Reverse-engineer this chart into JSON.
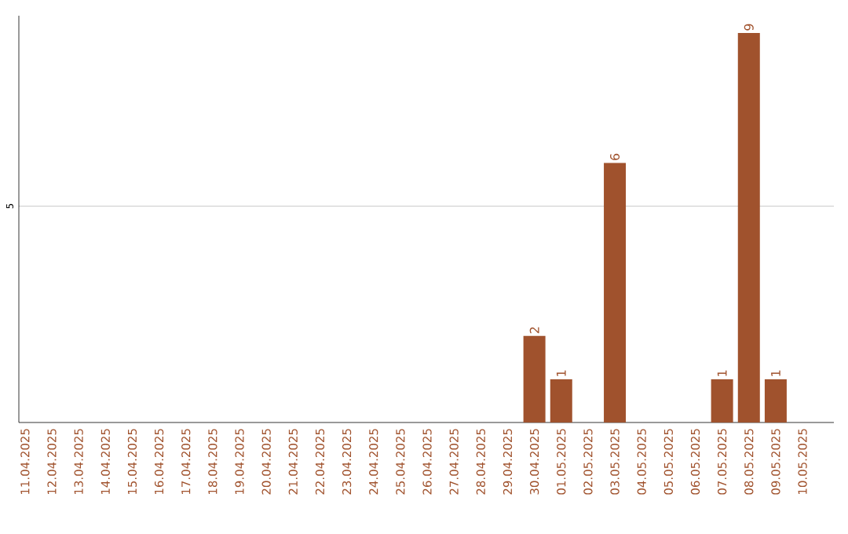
{
  "chart_data": {
    "type": "bar",
    "categories": [
      "11.04.2025",
      "12.04.2025",
      "13.04.2025",
      "14.04.2025",
      "15.04.2025",
      "16.04.2025",
      "17.04.2025",
      "18.04.2025",
      "19.04.2025",
      "20.04.2025",
      "21.04.2025",
      "22.04.2025",
      "23.04.2025",
      "24.04.2025",
      "25.04.2025",
      "26.04.2025",
      "27.04.2025",
      "28.04.2025",
      "29.04.2025",
      "30.04.2025",
      "01.05.2025",
      "02.05.2025",
      "03.05.2025",
      "04.05.2025",
      "05.05.2025",
      "06.05.2025",
      "07.05.2025",
      "08.05.2025",
      "09.05.2025",
      "10.05.2025"
    ],
    "values": [
      null,
      null,
      null,
      null,
      null,
      null,
      null,
      null,
      null,
      null,
      null,
      null,
      null,
      null,
      null,
      null,
      null,
      null,
      null,
      2,
      1,
      null,
      6,
      null,
      null,
      null,
      1,
      9,
      1,
      null
    ],
    "color": "#a0522d",
    "ylim": [
      0,
      9.4
    ],
    "yticks": [
      5
    ],
    "grid": "y",
    "data_labels": true
  }
}
